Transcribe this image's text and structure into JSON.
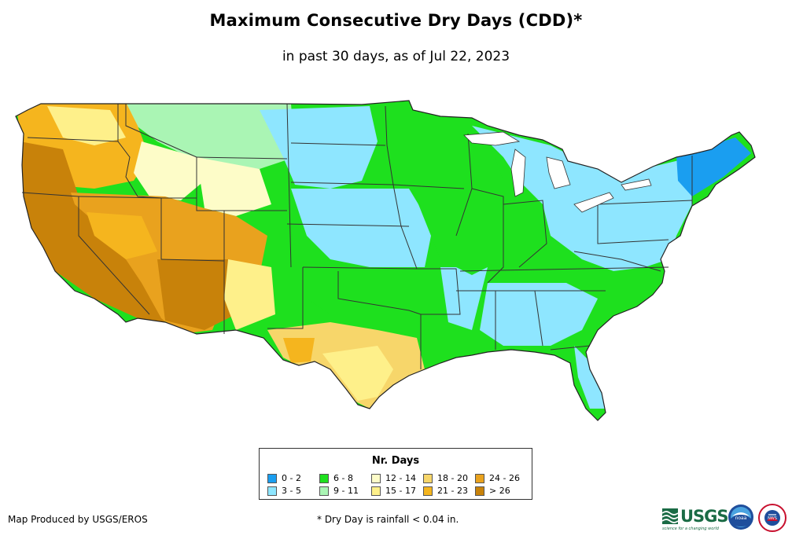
{
  "title": "Maximum Consecutive Dry Days (CDD)*",
  "subtitle": "in past 30 days, as of Jul 22, 2023",
  "legend": {
    "title": "Nr. Days",
    "items": [
      {
        "label": "0 - 2",
        "color": "#1a9ef0"
      },
      {
        "label": "3 - 5",
        "color": "#8ee6ff"
      },
      {
        "label": "6 - 8",
        "color": "#1ee01e"
      },
      {
        "label": "9 - 11",
        "color": "#aaf5b4"
      },
      {
        "label": "12 - 14",
        "color": "#fdfcc8"
      },
      {
        "label": "15 - 17",
        "color": "#fef08a"
      },
      {
        "label": "18 - 20",
        "color": "#f7d66a"
      },
      {
        "label": "21 - 23",
        "color": "#f5b51e"
      },
      {
        "label": "24 - 26",
        "color": "#e9a21e"
      },
      {
        "label": "> 26",
        "color": "#c8820a"
      }
    ]
  },
  "credit": "Map Produced by USGS/EROS",
  "footnote": "* Dry Day is rainfall < 0.04 in.",
  "logos": {
    "usgs_text": "USGS",
    "usgs_tagline": "science for a changing world",
    "noaa_text": "noaa",
    "nws_text": "NWS"
  },
  "colors": {
    "state_border": "#333333",
    "coast": "#222222"
  }
}
